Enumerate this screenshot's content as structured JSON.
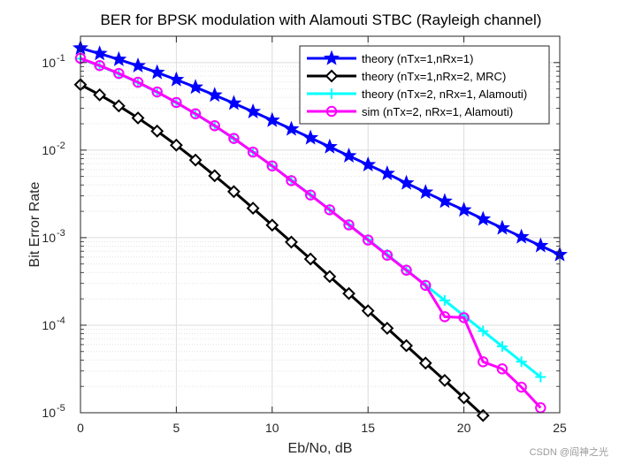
{
  "chart_data": {
    "type": "line",
    "title": "BER for BPSK modulation with Alamouti STBC (Rayleigh channel)",
    "xlabel": "Eb/No, dB",
    "ylabel": "Bit Error Rate",
    "xlim": [
      0,
      25
    ],
    "ylim": [
      1e-05,
      0.2
    ],
    "yscale": "log",
    "xticks": [
      0,
      5,
      10,
      15,
      20,
      25
    ],
    "yticks": [
      {
        "value": 1e-05,
        "mantissa": "10",
        "exp": "-5"
      },
      {
        "value": 0.0001,
        "mantissa": "10",
        "exp": "-4"
      },
      {
        "value": 0.001,
        "mantissa": "10",
        "exp": "-3"
      },
      {
        "value": 0.01,
        "mantissa": "10",
        "exp": "-2"
      },
      {
        "value": 0.1,
        "mantissa": "10",
        "exp": "-1"
      }
    ],
    "grid": true,
    "minor_grid": true,
    "legend_position": "top-right",
    "series": [
      {
        "name": "theory (nTx=1,nRx=1)",
        "color": "#0000ff",
        "marker": "star",
        "x": [
          0,
          1,
          2,
          3,
          4,
          5,
          6,
          7,
          8,
          9,
          10,
          11,
          12,
          13,
          14,
          15,
          16,
          17,
          18,
          19,
          20,
          21,
          22,
          23,
          24,
          25
        ],
        "y": [
          0.1464,
          0.1267,
          0.1085,
          0.0919,
          0.077,
          0.0638,
          0.0523,
          0.0425,
          0.0343,
          0.0275,
          0.0219,
          0.0174,
          0.0138,
          0.0109,
          0.0086,
          0.0068,
          0.0054,
          0.0042,
          0.0033,
          0.0026,
          0.00207,
          0.00163,
          0.00129,
          0.00102,
          0.00081,
          0.00064
        ]
      },
      {
        "name": "theory (nTx=1,nRx=2, MRC)",
        "color": "#000000",
        "marker": "diamond",
        "x": [
          0,
          1,
          2,
          3,
          4,
          5,
          6,
          7,
          8,
          9,
          10,
          11,
          12,
          13,
          14,
          15,
          16,
          17,
          18,
          19,
          20,
          21
        ],
        "y": [
          0.056,
          0.0428,
          0.032,
          0.0233,
          0.0165,
          0.0114,
          0.0077,
          0.0051,
          0.00336,
          0.00217,
          0.00139,
          0.00089,
          0.00057,
          0.00036,
          0.00023,
          0.000146,
          9.23e-05,
          5.84e-05,
          3.69e-05,
          2.34e-05,
          1.48e-05,
          9.3e-06
        ]
      },
      {
        "name": "theory (nTx=2, nRx=1, Alamouti)",
        "color": "#00ffff",
        "marker": "plus",
        "x": [
          0,
          1,
          2,
          3,
          4,
          5,
          6,
          7,
          8,
          9,
          10,
          11,
          12,
          13,
          14,
          15,
          16,
          17,
          18,
          19,
          20,
          21,
          22,
          23,
          24
        ],
        "y": [
          0.111,
          0.0917,
          0.0744,
          0.0591,
          0.0459,
          0.0349,
          0.0259,
          0.0189,
          0.0135,
          0.0095,
          0.0066,
          0.0045,
          0.00309,
          0.00209,
          0.00141,
          0.00095,
          0.00064,
          0.000428,
          0.000287,
          0.000192,
          0.000128,
          8.57e-05,
          5.73e-05,
          3.83e-05,
          2.56e-05
        ]
      },
      {
        "name": "sim (nTx=2, nRx=1, Alamouti)",
        "color": "#ff00ff",
        "marker": "circle",
        "x": [
          0,
          1,
          2,
          3,
          4,
          5,
          6,
          7,
          8,
          9,
          10,
          11,
          12,
          13,
          14,
          15,
          16,
          17,
          18,
          19,
          20,
          21,
          22,
          23,
          24
        ],
        "y": [
          0.112,
          0.0925,
          0.0752,
          0.0596,
          0.0462,
          0.035,
          0.026,
          0.019,
          0.0136,
          0.0095,
          0.0066,
          0.00448,
          0.00307,
          0.00208,
          0.0014,
          0.00094,
          0.00063,
          0.000425,
          0.000285,
          0.000125,
          0.000122,
          3.82e-05,
          3.17e-05,
          1.96e-05,
          1.14e-05
        ]
      }
    ]
  },
  "watermark": "CSDN @阎神之光"
}
